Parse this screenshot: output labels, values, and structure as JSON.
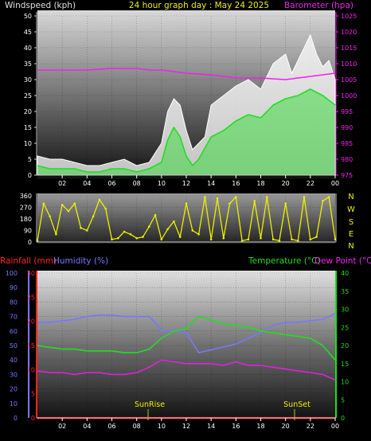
{
  "header": {
    "left": "Windspeed (kph)",
    "center": "24 hour graph day : May 24 2025",
    "right": "Barometer (hpa)"
  },
  "colors": {
    "windspeed": "#ffffff",
    "windgust": "#ffffff",
    "windavg": "#22dd22",
    "barometer": "#ee22ee",
    "direction": "#eeee00",
    "humidity": "#7777ff",
    "rainfall": "#ff2222",
    "temperature": "#22dd22",
    "dewpoint": "#dd22dd",
    "header_left": "#e0e0e0",
    "header_center": "#eeee00",
    "header_right": "#ee22ee"
  },
  "legend": {
    "rainfall": "Rainfall (mm)",
    "humidity": "Humidity (%)",
    "temperature": "Temperature (°C)",
    "dewpoint": "Dew Point (°C)"
  },
  "compass": [
    "N",
    "W",
    "S",
    "E",
    "N"
  ],
  "annotations": {
    "sunrise": "SunRise",
    "sunset": "SunSet"
  },
  "chart_data": [
    {
      "type": "line",
      "name": "windspeed-barometer",
      "x_ticks": [
        "02",
        "04",
        "06",
        "08",
        "10",
        "12",
        "14",
        "16",
        "18",
        "20",
        "22",
        "00"
      ],
      "x_range_hours": [
        0,
        24
      ],
      "y_left": {
        "label": "Windspeed (kph)",
        "range": [
          0,
          50
        ],
        "ticks": [
          0,
          5,
          10,
          15,
          20,
          25,
          30,
          35,
          40,
          45,
          50
        ]
      },
      "y_right": {
        "label": "Barometer (hpa)",
        "range": [
          975,
          1025
        ],
        "ticks": [
          975,
          980,
          985,
          990,
          995,
          1000,
          1005,
          1010,
          1015,
          1020,
          1025
        ]
      },
      "series": [
        {
          "axis": "left",
          "style": "gust",
          "x": [
            0,
            1,
            2,
            3,
            4,
            5,
            6,
            7,
            8,
            9,
            9.5,
            10,
            10.5,
            11,
            11.5,
            12,
            12.5,
            13,
            13.5,
            14,
            15,
            16,
            17,
            18,
            19,
            20,
            20.5,
            21,
            21.5,
            22,
            22.5,
            23,
            23.5,
            24
          ],
          "y": [
            6,
            5,
            5,
            4,
            3,
            3,
            4,
            5,
            3,
            4,
            7,
            10,
            20,
            24,
            22,
            14,
            8,
            10,
            12,
            22,
            25,
            28,
            30,
            27,
            35,
            38,
            32,
            36,
            40,
            44,
            38,
            34,
            36,
            30
          ]
        },
        {
          "axis": "left",
          "style": "avg",
          "x": [
            0,
            1,
            2,
            3,
            4,
            5,
            6,
            7,
            8,
            9,
            10,
            10.5,
            11,
            11.5,
            12,
            12.5,
            13,
            14,
            15,
            16,
            17,
            18,
            19,
            20,
            21,
            22,
            23,
            24
          ],
          "y": [
            3,
            2,
            2,
            2,
            1,
            1,
            2,
            2,
            1,
            2,
            4,
            11,
            15,
            12,
            6,
            3,
            5,
            12,
            14,
            17,
            19,
            18,
            22,
            24,
            25,
            27,
            25,
            22
          ]
        },
        {
          "axis": "right",
          "x": [
            0,
            2,
            4,
            6,
            8,
            9,
            10,
            12,
            14,
            16,
            18,
            20,
            22,
            23,
            24
          ],
          "y": [
            1008,
            1008,
            1008,
            1008.5,
            1008.5,
            1008,
            1008,
            1007,
            1006.5,
            1005.5,
            1005.5,
            1005,
            1006,
            1006.5,
            1007
          ]
        }
      ]
    },
    {
      "type": "scatter",
      "name": "wind-direction",
      "x_ticks": [],
      "x_range_hours": [
        0,
        24
      ],
      "y": {
        "range": [
          0,
          360
        ],
        "ticks": [
          0,
          90,
          180,
          270,
          360
        ]
      },
      "series": [
        {
          "x": [
            0,
            0.5,
            1,
            1.5,
            2,
            2.5,
            3,
            3.5,
            4,
            4.5,
            5,
            5.5,
            6,
            6.5,
            7,
            7.5,
            8,
            8.5,
            9,
            9.5,
            10,
            10.5,
            11,
            11.5,
            12,
            12.5,
            13,
            13.5,
            14,
            14.5,
            15,
            15.5,
            16,
            16.5,
            17,
            17.5,
            18,
            18.5,
            19,
            19.5,
            20,
            20.5,
            21,
            21.5,
            22,
            22.5,
            23,
            23.5,
            24
          ],
          "y": [
            10,
            300,
            200,
            60,
            290,
            240,
            300,
            110,
            90,
            200,
            330,
            260,
            20,
            30,
            80,
            60,
            30,
            40,
            120,
            210,
            20,
            100,
            160,
            40,
            300,
            90,
            60,
            350,
            20,
            340,
            30,
            300,
            350,
            10,
            20,
            320,
            30,
            350,
            20,
            10,
            300,
            20,
            10,
            350,
            20,
            40,
            320,
            350,
            20
          ]
        }
      ]
    },
    {
      "type": "line",
      "name": "temp-humidity-dew",
      "x_ticks": [
        "02",
        "04",
        "06",
        "08",
        "10",
        "12",
        "14",
        "16",
        "18",
        "20",
        "22",
        "00"
      ],
      "x_range_hours": [
        0,
        24
      ],
      "y_left_humidity": {
        "label": "Humidity (%)",
        "range": [
          0,
          100
        ],
        "ticks": [
          0,
          10,
          20,
          30,
          40,
          50,
          60,
          70,
          80,
          90,
          100
        ]
      },
      "y_left_rain": {
        "label": "Rainfall (mm)",
        "range": [
          0,
          30
        ],
        "ticks": [
          0,
          5,
          10,
          15,
          20,
          25,
          30
        ]
      },
      "y_right": {
        "label": "Temperature (°C)",
        "range": [
          0,
          40
        ],
        "ticks": [
          0,
          5,
          10,
          15,
          20,
          25,
          30,
          35,
          40
        ]
      },
      "series": [
        {
          "axis": "humidity",
          "x": [
            0,
            1,
            2,
            3,
            4,
            5,
            6,
            7,
            8,
            9,
            9.5,
            10,
            11,
            12,
            12.5,
            13,
            14,
            15,
            16,
            17,
            18,
            19,
            20,
            21,
            22,
            23,
            24
          ],
          "y": [
            66,
            66,
            67,
            68,
            70,
            71,
            71,
            70,
            70,
            70,
            66,
            60,
            60,
            59,
            52,
            45,
            47,
            49,
            51,
            55,
            59,
            64,
            66,
            66,
            67,
            68,
            72
          ]
        },
        {
          "axis": "temp",
          "x": [
            0,
            1,
            2,
            3,
            4,
            5,
            6,
            7,
            8,
            9,
            10,
            11,
            12,
            12.5,
            13,
            14,
            15,
            16,
            17,
            18,
            19,
            20,
            21,
            22,
            23,
            24
          ],
          "y": [
            20,
            19.5,
            19,
            19,
            18.5,
            18.5,
            18.5,
            18,
            18,
            19,
            22,
            24,
            24.5,
            26.5,
            28,
            27,
            26,
            25.5,
            25,
            24,
            23.5,
            23,
            22.5,
            22,
            20,
            16
          ]
        },
        {
          "axis": "temp",
          "x": [
            0,
            1,
            2,
            3,
            4,
            5,
            6,
            7,
            8,
            9,
            10,
            11,
            12,
            13,
            14,
            15,
            16,
            17,
            18,
            19,
            20,
            21,
            22,
            23,
            24
          ],
          "y": [
            13,
            12.5,
            12.5,
            12,
            12.5,
            12.5,
            12,
            12,
            12.5,
            14,
            16,
            15.5,
            15,
            15,
            15,
            14.5,
            15.5,
            14.5,
            14.5,
            14,
            13.5,
            13,
            12.5,
            12,
            10.5
          ]
        },
        {
          "axis": "rain",
          "x": [
            0,
            24
          ],
          "y": [
            0,
            0
          ]
        }
      ]
    }
  ]
}
